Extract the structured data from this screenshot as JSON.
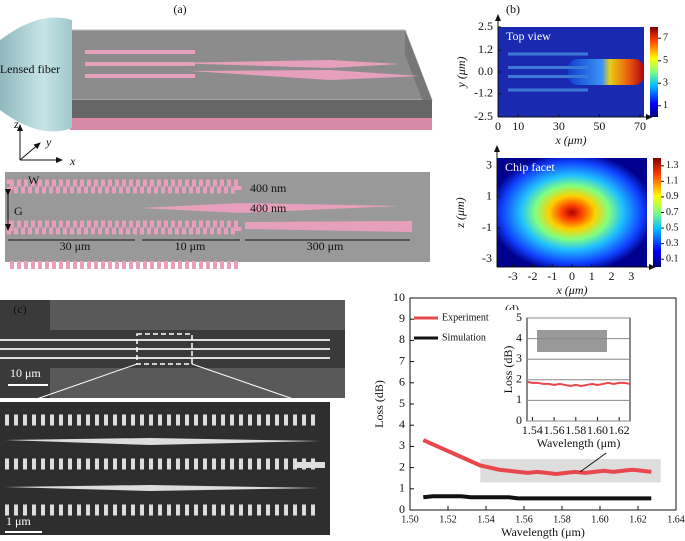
{
  "figure": {
    "panel_labels": [
      "(a)",
      "(b)",
      "(c)",
      "(d)"
    ],
    "a": {
      "fiber": "Lensed fiber",
      "axes": [
        "z",
        "y",
        "x"
      ],
      "w": "W",
      "g": "G",
      "height1": "400 nm",
      "height2": "400 nm",
      "len1": "30 μm",
      "len2": "10 μm",
      "len3": "300 μm"
    },
    "c": {
      "scale_top": "10 μm",
      "scale_bottom": "1 μm"
    }
  },
  "chart_data": [
    {
      "type": "heatmap",
      "title": "Top view",
      "xlabel": "x (μm)",
      "ylabel": "y (μm)",
      "xlim": [
        0,
        72
      ],
      "xticks": [
        0,
        10,
        30,
        50,
        70
      ],
      "ylim": [
        -2.5,
        2.5
      ],
      "yticks": [
        2.5,
        1.2,
        {
          "value": 0,
          "label": "0.0"
        },
        -1.2,
        -2.5
      ],
      "colorbar": {
        "clim": [
          0,
          8
        ],
        "ticks": [
          1,
          3,
          5,
          7
        ]
      }
    },
    {
      "type": "heatmap",
      "title": "Chip facet",
      "xlabel": "x (μm)",
      "ylabel": "z (μm)",
      "xlim": [
        -3.8,
        3.8
      ],
      "xticks": [
        -3,
        -2,
        -1,
        0,
        1,
        2,
        3
      ],
      "ylim": [
        -3.5,
        3.5
      ],
      "yticks": [
        3,
        1,
        -1,
        -3
      ],
      "colorbar": {
        "clim": [
          0,
          1.4
        ],
        "ticks": [
          0.1,
          0.3,
          0.5,
          0.7,
          0.9,
          1.1,
          1.3
        ]
      }
    },
    {
      "type": "line",
      "xlabel": "Wavelength (μm)",
      "ylabel": "Loss (dB)",
      "xlim": [
        1.5,
        1.64
      ],
      "xticks": [
        {
          "value": 1.5,
          "label": "1.50"
        },
        1.52,
        1.54,
        1.56,
        1.58,
        {
          "value": 1.6,
          "label": "1.60"
        },
        1.62,
        1.64
      ],
      "ylim": [
        0,
        10
      ],
      "yticks": [
        0,
        1,
        2,
        3,
        4,
        5,
        6,
        7,
        8,
        9,
        10
      ],
      "legend": "upper left",
      "x": [
        1.507,
        1.512,
        1.517,
        1.522,
        1.527,
        1.532,
        1.537,
        1.542,
        1.547,
        1.552,
        1.557,
        1.562,
        1.567,
        1.572,
        1.577,
        1.582,
        1.587,
        1.592,
        1.597,
        1.602,
        1.607,
        1.612,
        1.617,
        1.622,
        1.627
      ],
      "series": [
        {
          "name": "Experiment",
          "color": "#e8474b",
          "values": [
            3.3,
            3.1,
            2.9,
            2.7,
            2.5,
            2.3,
            2.1,
            2.0,
            1.9,
            1.85,
            1.8,
            1.75,
            1.8,
            1.75,
            1.7,
            1.75,
            1.8,
            1.75,
            1.8,
            1.85,
            1.8,
            1.85,
            1.9,
            1.85,
            1.8
          ]
        },
        {
          "name": "Simulation",
          "color": "#111111",
          "values": [
            0.6,
            0.65,
            0.65,
            0.65,
            0.65,
            0.6,
            0.6,
            0.6,
            0.6,
            0.6,
            0.55,
            0.55,
            0.55,
            0.55,
            0.55,
            0.55,
            0.55,
            0.55,
            0.55,
            0.55,
            0.55,
            0.55,
            0.55,
            0.55,
            0.55
          ]
        }
      ]
    },
    {
      "type": "line",
      "xlabel": "Wavelength (μm)",
      "ylabel": "Loss (dB)",
      "xlim": [
        1.535,
        1.63
      ],
      "xticks": [
        1.54,
        1.56,
        1.58,
        {
          "value": 1.6,
          "label": "1.60"
        },
        1.62
      ],
      "ylim": [
        0,
        5
      ],
      "yticks": [
        0,
        1,
        2,
        3,
        4,
        5
      ],
      "grid": true,
      "x": [
        1.535,
        1.54,
        1.545,
        1.55,
        1.555,
        1.56,
        1.565,
        1.57,
        1.575,
        1.58,
        1.585,
        1.59,
        1.595,
        1.6,
        1.605,
        1.61,
        1.615,
        1.62,
        1.625,
        1.63
      ],
      "series": [
        {
          "color": "#e8474b",
          "values": [
            1.9,
            1.85,
            1.85,
            1.8,
            1.8,
            1.75,
            1.8,
            1.75,
            1.7,
            1.75,
            1.7,
            1.75,
            1.8,
            1.75,
            1.8,
            1.85,
            1.8,
            1.85,
            1.85,
            1.8
          ]
        }
      ]
    }
  ]
}
